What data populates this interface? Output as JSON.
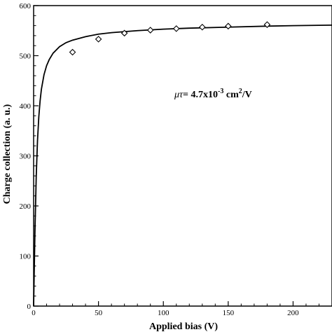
{
  "chart_data": {
    "type": "scatter",
    "title": "",
    "xlabel": "Applied bias (V)",
    "ylabel": "Charge collection (a. u.)",
    "xlim": [
      0,
      230
    ],
    "ylim": [
      0,
      600
    ],
    "x_ticks": [
      "0",
      "50",
      "100",
      "150",
      "200"
    ],
    "y_ticks": [
      "0",
      "100",
      "200",
      "300",
      "400",
      "500",
      "600"
    ],
    "grid": false,
    "points": [
      {
        "x": 30,
        "y": 507
      },
      {
        "x": 50,
        "y": 533
      },
      {
        "x": 70,
        "y": 545
      },
      {
        "x": 90,
        "y": 551
      },
      {
        "x": 110,
        "y": 554
      },
      {
        "x": 130,
        "y": 557
      },
      {
        "x": 150,
        "y": 559
      },
      {
        "x": 180,
        "y": 562
      }
    ],
    "fit_curve": {
      "style": "solid",
      "points": [
        [
          0,
          0
        ],
        [
          1,
          145
        ],
        [
          2,
          258
        ],
        [
          3,
          331
        ],
        [
          4,
          378
        ],
        [
          5,
          410
        ],
        [
          6,
          433
        ],
        [
          8,
          462
        ],
        [
          10,
          480
        ],
        [
          12,
          492
        ],
        [
          15,
          505
        ],
        [
          20,
          518
        ],
        [
          25,
          526
        ],
        [
          30,
          531
        ],
        [
          40,
          538
        ],
        [
          50,
          543
        ],
        [
          60,
          546
        ],
        [
          80,
          550
        ],
        [
          100,
          553
        ],
        [
          120,
          555
        ],
        [
          150,
          557
        ],
        [
          180,
          559
        ],
        [
          200,
          560
        ],
        [
          230,
          561
        ]
      ]
    },
    "annotation": {
      "mu": "μ",
      "tau": "τ",
      "text_before": "= 4.7x10",
      "exponent": "-3",
      "text_middle": " cm",
      "exponent2": "2",
      "text_after": "/V"
    }
  }
}
